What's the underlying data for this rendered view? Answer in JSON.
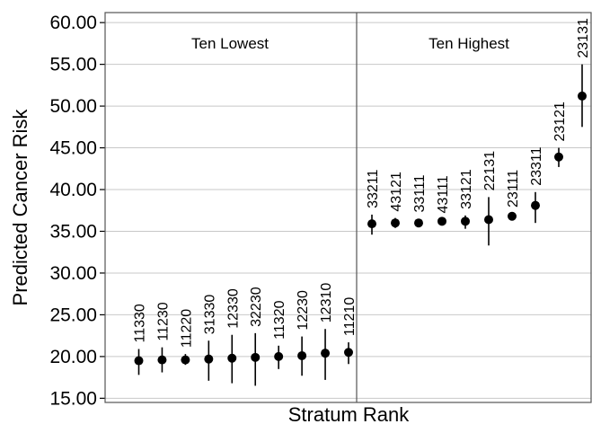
{
  "chart_data": {
    "type": "scatter",
    "xlabel": "Stratum Rank",
    "ylabel": "Predicted Cancer Risk",
    "ylim": [
      14.5,
      61.2
    ],
    "yticks": [
      "15.00",
      "20.00",
      "25.00",
      "30.00",
      "35.00",
      "40.00",
      "45.00",
      "50.00",
      "55.00",
      "60.00"
    ],
    "grid": true,
    "panels": [
      {
        "title": "Ten Lowest",
        "points": [
          {
            "label": "11330",
            "y": 19.5,
            "low": 17.8,
            "high": 20.9
          },
          {
            "label": "11230",
            "y": 19.6,
            "low": 18.1,
            "high": 21.1
          },
          {
            "label": "11220",
            "y": 19.6,
            "low": 19.0,
            "high": 20.3
          },
          {
            "label": "31330",
            "y": 19.7,
            "low": 17.1,
            "high": 21.9
          },
          {
            "label": "12330",
            "y": 19.8,
            "low": 16.8,
            "high": 22.6
          },
          {
            "label": "32230",
            "y": 19.9,
            "low": 16.5,
            "high": 22.8
          },
          {
            "label": "11320",
            "y": 20.0,
            "low": 18.5,
            "high": 21.3
          },
          {
            "label": "12230",
            "y": 20.1,
            "low": 17.7,
            "high": 22.4
          },
          {
            "label": "12310",
            "y": 20.4,
            "low": 17.2,
            "high": 23.3
          },
          {
            "label": "11210",
            "y": 20.5,
            "low": 19.1,
            "high": 21.7
          }
        ]
      },
      {
        "title": "Ten Highest",
        "points": [
          {
            "label": "33211",
            "y": 35.9,
            "low": 34.6,
            "high": 37.0
          },
          {
            "label": "43121",
            "y": 36.0,
            "low": 35.4,
            "high": 36.6
          },
          {
            "label": "33111",
            "y": 36.0,
            "low": 35.5,
            "high": 36.5
          },
          {
            "label": "43111",
            "y": 36.2,
            "low": 36.0,
            "high": 36.4
          },
          {
            "label": "33121",
            "y": 36.2,
            "low": 35.3,
            "high": 36.9
          },
          {
            "label": "22131",
            "y": 36.4,
            "low": 33.3,
            "high": 39.1
          },
          {
            "label": "23111",
            "y": 36.8,
            "low": 36.5,
            "high": 37.1
          },
          {
            "label": "23311",
            "y": 38.1,
            "low": 36.0,
            "high": 39.7
          },
          {
            "label": "23121",
            "y": 43.9,
            "low": 42.7,
            "high": 45.0
          },
          {
            "label": "23131",
            "y": 51.2,
            "low": 47.5,
            "high": 55.0
          }
        ]
      }
    ]
  }
}
